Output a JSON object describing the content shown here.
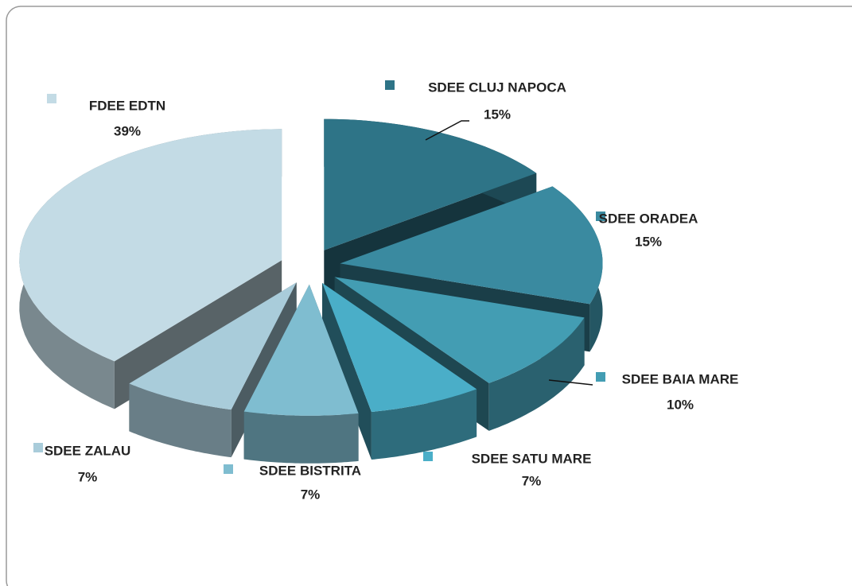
{
  "chart_data": {
    "type": "pie",
    "categories": [
      "SDEE CLUJ NAPOCA",
      "SDEE ORADEA",
      "SDEE BAIA MARE",
      "SDEE SATU MARE",
      "SDEE BISTRITA",
      "SDEE ZALAU",
      "FDEE EDTN"
    ],
    "values": [
      15,
      15,
      10,
      7,
      7,
      7,
      39
    ],
    "value_labels": [
      "15%",
      "15%",
      "10%",
      "7%",
      "7%",
      "7%",
      "39%"
    ],
    "colors": [
      "#2e7487",
      "#3a8aa0",
      "#439db3",
      "#4aaec8",
      "#7fbdd0",
      "#a9ccda",
      "#c3dbe5"
    ]
  }
}
